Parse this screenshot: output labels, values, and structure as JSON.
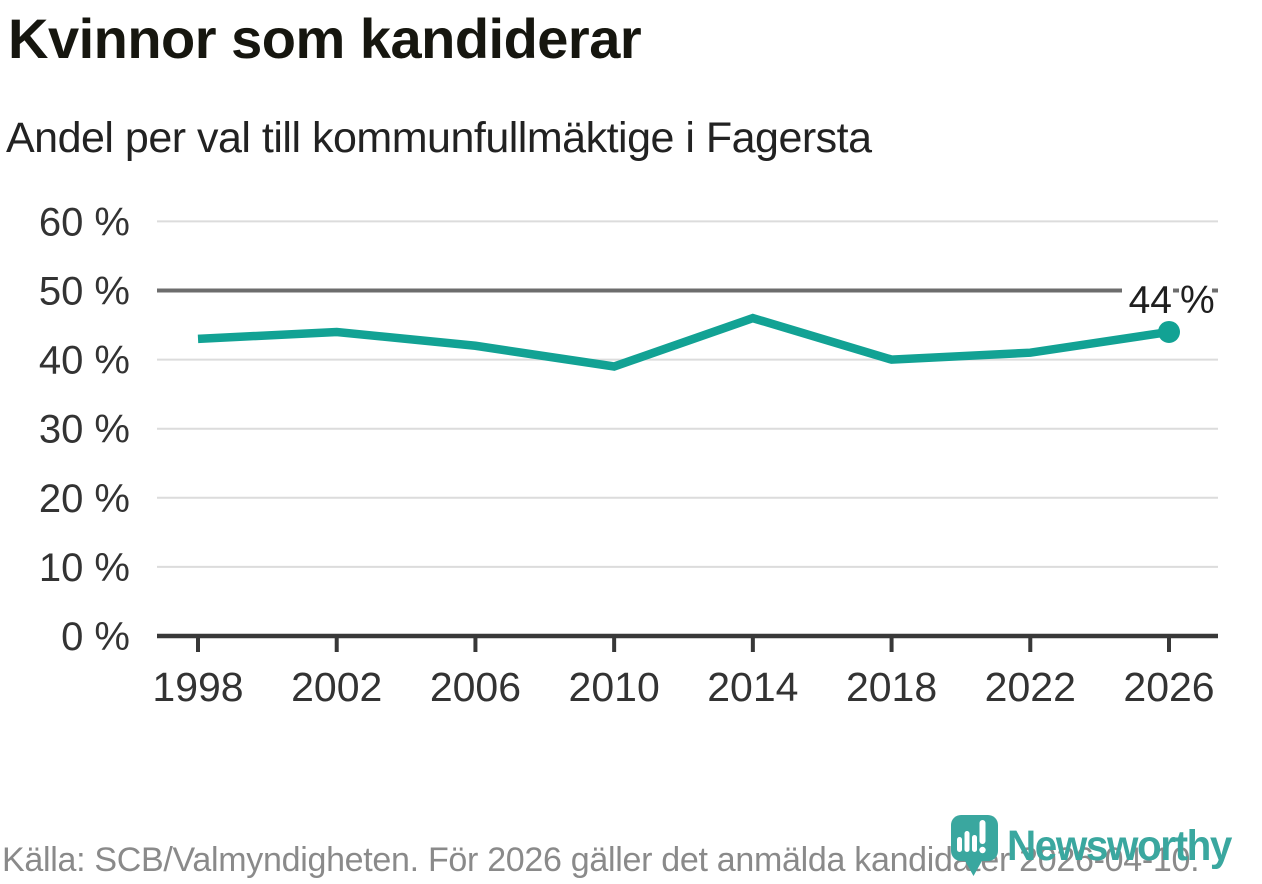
{
  "header": {
    "title": "Kvinnor som kandiderar",
    "subtitle": "Andel per val till kommunfullmäktige i Fagersta"
  },
  "footer": {
    "source_text": "Källa: SCB/Valmyndigheten. För 2026 gäller det anmälda kandidater 2026-04-10."
  },
  "branding": {
    "wordmark": "Newsworthy"
  },
  "colors": {
    "line": "#12a294",
    "end_dot": "#12a294",
    "brand_teal": "#3aa79f",
    "grid": "#dcdcdc",
    "reference_line": "#6d6d6d",
    "axis": "#383838",
    "tick_label": "#333333",
    "annotation_text": "#1f1f1f",
    "footer_text": "#8a8a8a",
    "title_text": "#16160f"
  },
  "chart_data": {
    "type": "line",
    "title": "Kvinnor som kandiderar",
    "subtitle": "Andel per val till kommunfullmäktige i Fagersta",
    "categories": [
      "1998",
      "2002",
      "2006",
      "2010",
      "2014",
      "2018",
      "2022",
      "2026"
    ],
    "values": [
      43,
      44,
      42,
      39,
      46,
      40,
      41,
      44
    ],
    "ylim": [
      0,
      60
    ],
    "yticks": [
      0,
      10,
      20,
      30,
      40,
      50,
      60
    ],
    "ytick_labels": [
      "0 %",
      "10 %",
      "20 %",
      "30 %",
      "40 %",
      "50 %",
      "60 %"
    ],
    "reference_value": 50,
    "end_label": {
      "value_text": "44",
      "unit_text": "%"
    },
    "grid": true,
    "legend": "none",
    "xlabel": "",
    "ylabel": ""
  }
}
